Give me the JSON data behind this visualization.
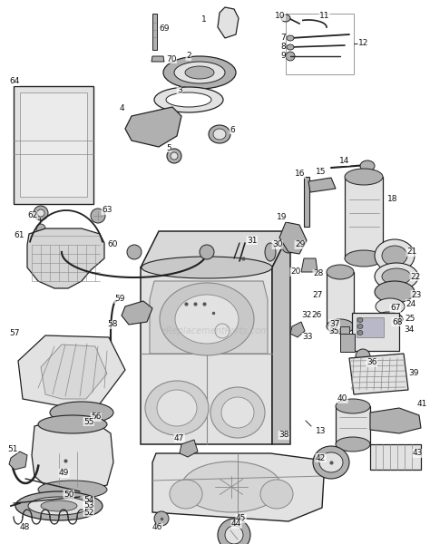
{
  "bg_color": "#ffffff",
  "watermark": "eReplacementParts.com",
  "watermark_color": "#aaaaaa",
  "watermark_alpha": 0.45,
  "fig_width": 4.74,
  "fig_height": 6.0,
  "dpi": 100,
  "text_color": "#111111",
  "line_color": "#222222",
  "font_size": 6.5,
  "lw_main": 0.9,
  "gray_fill": "#c8c8c8",
  "gray_light": "#e2e2e2",
  "gray_dark": "#888888",
  "gray_mid": "#b0b0b0"
}
